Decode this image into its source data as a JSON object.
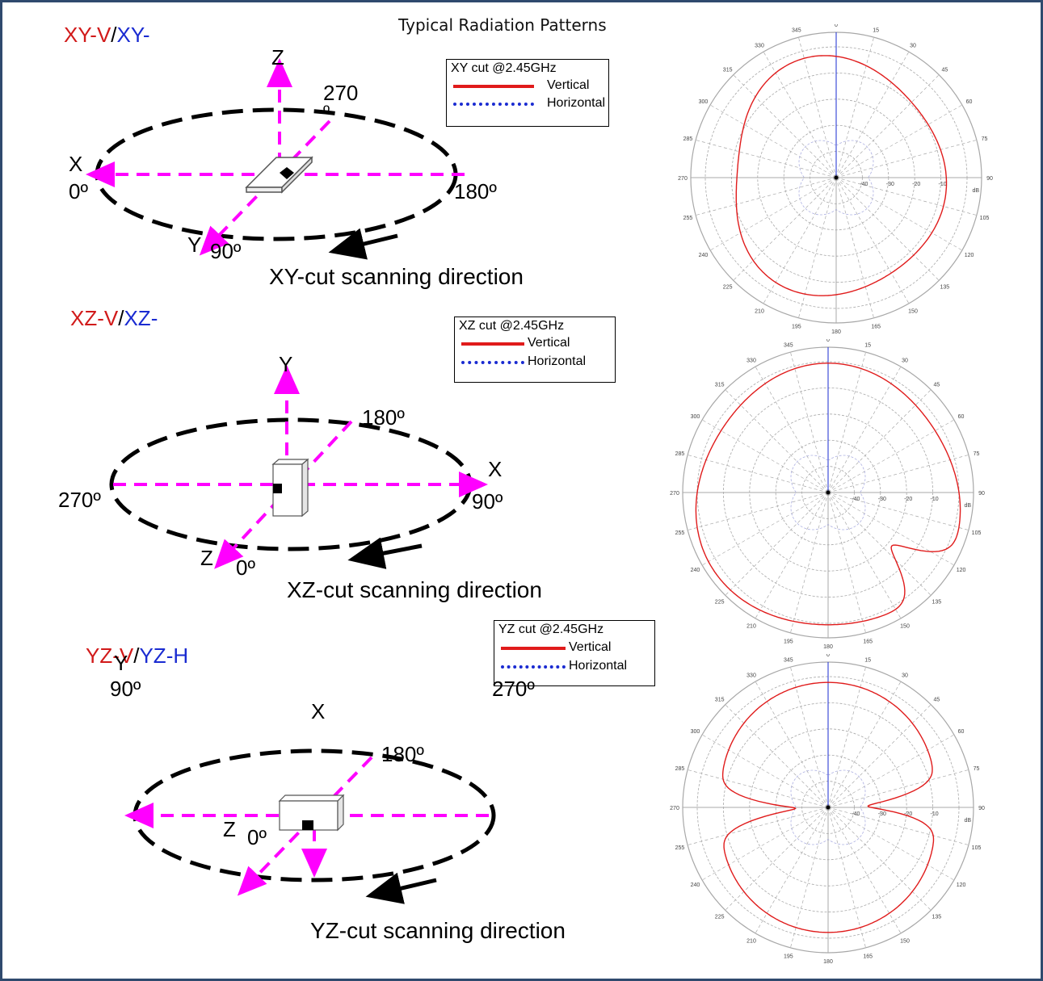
{
  "page_title": "Typical Radiation Patterns",
  "colors": {
    "frame": "#2f4a6e",
    "axis": "#ff00ff",
    "ellipse": "#000000",
    "vertical": "#e01b1b",
    "horizontal": "#1a2bd1",
    "grid": "#9a9a9a"
  },
  "panels": [
    {
      "cut_title": {
        "v": "XY-V",
        "sep": "/",
        "h": "XY-"
      },
      "legend": {
        "title": "XY cut @2.45GHz",
        "vertical": "Vertical",
        "horizontal": "Horizontal"
      },
      "labels": {
        "up_axis": "Z",
        "left_axis": "X",
        "front_axis": "Y",
        "left_deg": "0º",
        "right_deg": "180º",
        "back_deg": "270",
        "back_deg_sym": "º",
        "front_deg": "90º"
      },
      "scan_caption": "XY-cut scanning direction"
    },
    {
      "cut_title": {
        "v": "XZ-V",
        "sep": "/",
        "h": "XZ-"
      },
      "legend": {
        "title": "XZ cut @2.45GHz",
        "vertical": "Vertical",
        "horizontal": "Horizontal"
      },
      "labels": {
        "up_axis": "Y",
        "right_axis": "X",
        "front_axis": "Z",
        "left_deg": "270º",
        "right_deg": "90º",
        "back_deg": "180º",
        "front_deg": "0º"
      },
      "scan_caption": "XZ-cut scanning direction"
    },
    {
      "cut_title": {
        "v": "YZ-V",
        "sep": "/",
        "h": "YZ-H"
      },
      "legend": {
        "title": "YZ cut @2.45GHz",
        "vertical": "Vertical",
        "horizontal": "Horizontal"
      },
      "labels": {
        "up_axis": "X",
        "left_axis": "Y",
        "front_axis": "Z",
        "left_deg": "90º",
        "right_deg": "270º",
        "back_deg": "180º",
        "front_deg": "0º"
      },
      "scan_caption": "YZ-cut scanning direction"
    }
  ],
  "polar": {
    "angle_labels": [
      "0",
      "15",
      "30",
      "45",
      "60",
      "75",
      "90",
      "105",
      "120",
      "135",
      "150",
      "165",
      "180",
      "195",
      "210",
      "225",
      "240",
      "255",
      "270",
      "285",
      "300",
      "315",
      "330",
      "345"
    ],
    "ring_labels": [
      "-40",
      "-30",
      "-20",
      "-10"
    ],
    "unit": "dB"
  }
}
